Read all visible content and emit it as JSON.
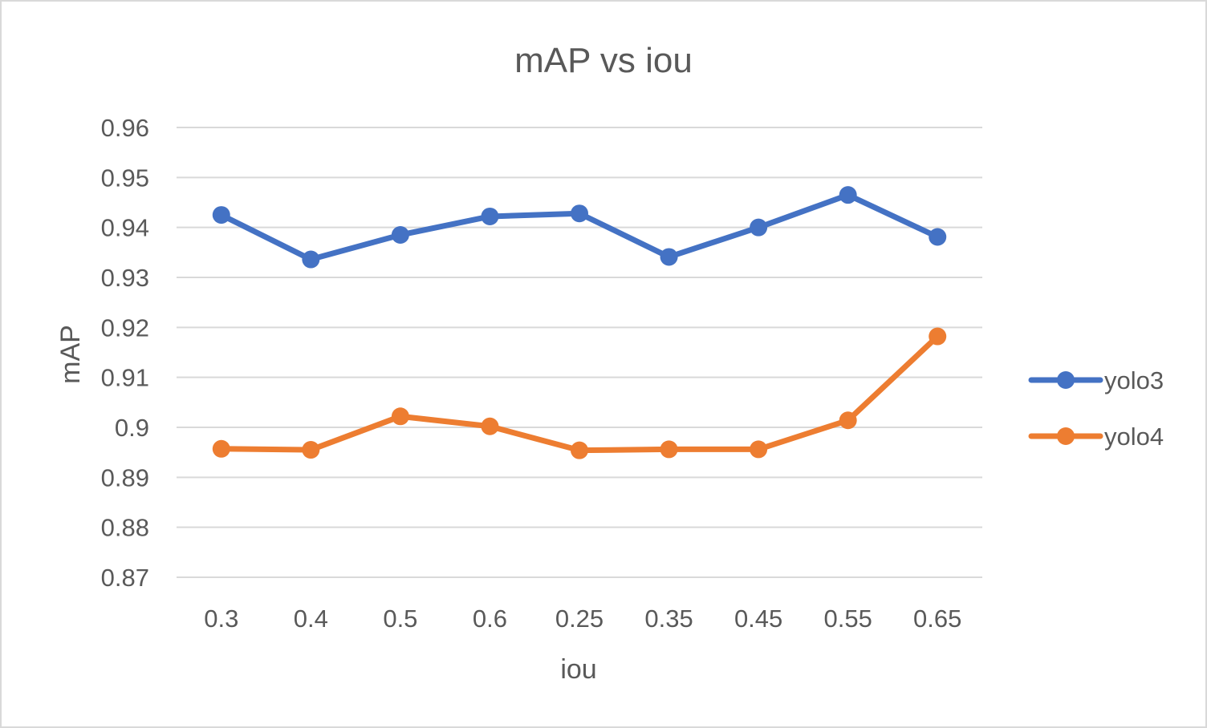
{
  "chart_data": {
    "type": "line",
    "title": "mAP vs iou",
    "xlabel": "iou",
    "ylabel": "mAP",
    "categories": [
      "0.3",
      "0.4",
      "0.5",
      "0.6",
      "0.25",
      "0.35",
      "0.45",
      "0.55",
      "0.65"
    ],
    "ylim": [
      0.87,
      0.96
    ],
    "yticks": [
      "0.96",
      "0.95",
      "0.94",
      "0.93",
      "0.92",
      "0.91",
      "0.9",
      "0.89",
      "0.88",
      "0.87"
    ],
    "grid": true,
    "legend": "right",
    "series": [
      {
        "name": "yolo3",
        "color": "#4472c4",
        "values": [
          0.9425,
          0.9336,
          0.9385,
          0.9422,
          0.9428,
          0.9341,
          0.94,
          0.9465,
          0.9381
        ]
      },
      {
        "name": "yolo4",
        "color": "#ed7d31",
        "values": [
          0.8957,
          0.8955,
          0.9022,
          0.9002,
          0.8954,
          0.8956,
          0.8956,
          0.9014,
          0.9182
        ]
      }
    ]
  }
}
